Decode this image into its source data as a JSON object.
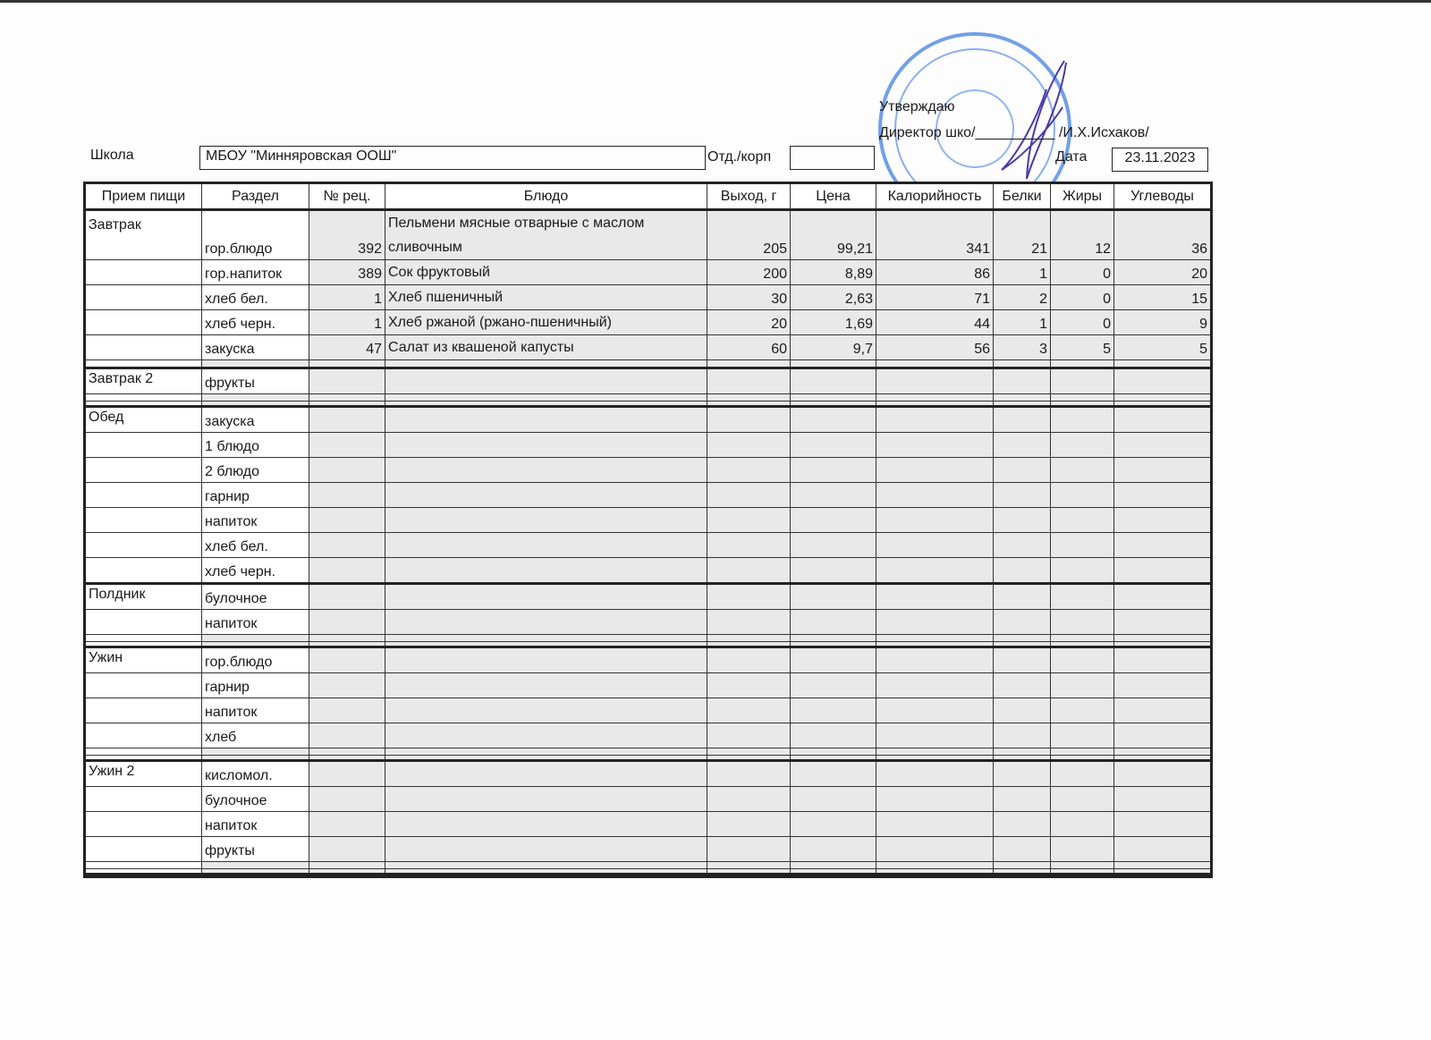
{
  "approval": {
    "approve": "Утверждаю",
    "director": "Директор шко/",
    "signature_line": "__________",
    "name": "/И.Х.Исхаков/"
  },
  "header": {
    "school_label": "Школа",
    "school_value": "МБОУ \"Минняровская ООШ\"",
    "dept_label": "Отд./корп",
    "dept_value": "",
    "date_label": "Дата",
    "date_value": "23.11.2023"
  },
  "colors": {
    "stamp": "#2f6fd8",
    "signature": "#4a3aa8",
    "cell_fill": "#e9e9e9"
  },
  "columns": [
    "Прием пищи",
    "Раздел",
    "№ рец.",
    "Блюдо",
    "Выход, г",
    "Цена",
    "Калорийность",
    "Белки",
    "Жиры",
    "Углеводы"
  ],
  "groups": [
    {
      "meal": "Завтрак",
      "rows": [
        {
          "section": "гор.блюдо",
          "recipe": "392",
          "dish": "Пельмени мясные отварные с маслом сливочным",
          "yield": "205",
          "price": "99,21",
          "kcal": "341",
          "protein": "21",
          "fat": "12",
          "carbs": "36"
        },
        {
          "section": "гор.напиток",
          "recipe": "389",
          "dish": "Сок фруктовый",
          "yield": "200",
          "price": "8,89",
          "kcal": "86",
          "protein": "1",
          "fat": "0",
          "carbs": "20"
        },
        {
          "section": "хлеб бел.",
          "recipe": "1",
          "dish": "Хлеб пшеничный",
          "yield": "30",
          "price": "2,63",
          "kcal": "71",
          "protein": "2",
          "fat": "0",
          "carbs": "15"
        },
        {
          "section": "хлеб черн.",
          "recipe": "1",
          "dish": "Хлеб ржаной (ржано-пшеничный)",
          "yield": "20",
          "price": "1,69",
          "kcal": "44",
          "protein": "1",
          "fat": "0",
          "carbs": "9"
        },
        {
          "section": "закуска",
          "recipe": "47",
          "dish": "Салат из квашеной капусты",
          "yield": "60",
          "price": "9,7",
          "kcal": "56",
          "protein": "3",
          "fat": "5",
          "carbs": "5"
        }
      ],
      "spacers": 1
    },
    {
      "meal": "Завтрак 2",
      "rows": [
        {
          "section": "фрукты"
        }
      ],
      "spacers": 2
    },
    {
      "meal": "Обед",
      "rows": [
        {
          "section": "закуска"
        },
        {
          "section": "1 блюдо"
        },
        {
          "section": "2 блюдо"
        },
        {
          "section": "гарнир"
        },
        {
          "section": "напиток"
        },
        {
          "section": "хлеб бел."
        },
        {
          "section": "хлеб черн."
        }
      ],
      "spacers": 0
    },
    {
      "meal": "Полдник",
      "rows": [
        {
          "section": "булочное"
        },
        {
          "section": "напиток"
        }
      ],
      "spacers": 2
    },
    {
      "meal": "Ужин",
      "rows": [
        {
          "section": "гор.блюдо"
        },
        {
          "section": "гарнир"
        },
        {
          "section": "напиток"
        },
        {
          "section": "хлеб"
        }
      ],
      "spacers": 2
    },
    {
      "meal": "Ужин 2",
      "rows": [
        {
          "section": "кисломол."
        },
        {
          "section": "булочное"
        },
        {
          "section": "напиток"
        },
        {
          "section": "фрукты"
        }
      ],
      "spacers": 2
    }
  ]
}
